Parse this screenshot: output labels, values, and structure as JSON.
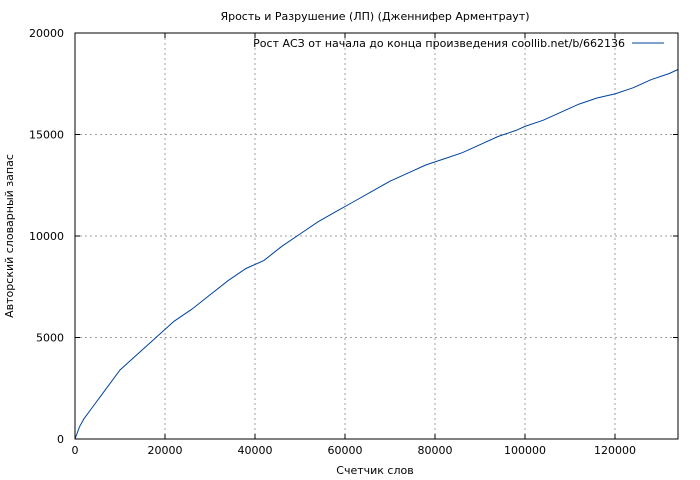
{
  "chart_data": {
    "type": "line",
    "title": "Ярость и Разрушение (ЛП) (Дженнифер Арментраут)",
    "xlabel": "Счетчик слов",
    "ylabel": "Авторский словарный запас",
    "xlim": [
      0,
      134000
    ],
    "ylim": [
      0,
      20000
    ],
    "xticks": [
      "0",
      "20000",
      "40000",
      "60000",
      "80000",
      "100000",
      "120000"
    ],
    "yticks": [
      "0",
      "5000",
      "10000",
      "15000",
      "20000"
    ],
    "grid": true,
    "legend_position": "top-right",
    "series": [
      {
        "name": "Рост АСЗ от начала до конца произведения coollib.net/b/662136",
        "color": "#00439e",
        "x": [
          0,
          1000,
          2000,
          4000,
          6000,
          8000,
          10000,
          13000,
          16000,
          20000,
          22000,
          26000,
          30000,
          34000,
          38000,
          42000,
          46000,
          50000,
          54000,
          58000,
          62000,
          66000,
          70000,
          74000,
          78000,
          82000,
          86000,
          90000,
          94000,
          98000,
          100000,
          104000,
          108000,
          112000,
          116000,
          120000,
          124000,
          128000,
          132000,
          134000
        ],
        "y": [
          0,
          600,
          1000,
          1600,
          2200,
          2800,
          3400,
          4000,
          4600,
          5400,
          5800,
          6400,
          7100,
          7800,
          8400,
          8800,
          9500,
          10100,
          10700,
          11200,
          11700,
          12200,
          12700,
          13100,
          13500,
          13800,
          14100,
          14500,
          14900,
          15200,
          15400,
          15700,
          16100,
          16500,
          16800,
          17000,
          17300,
          17700,
          18000,
          18200
        ]
      }
    ]
  }
}
